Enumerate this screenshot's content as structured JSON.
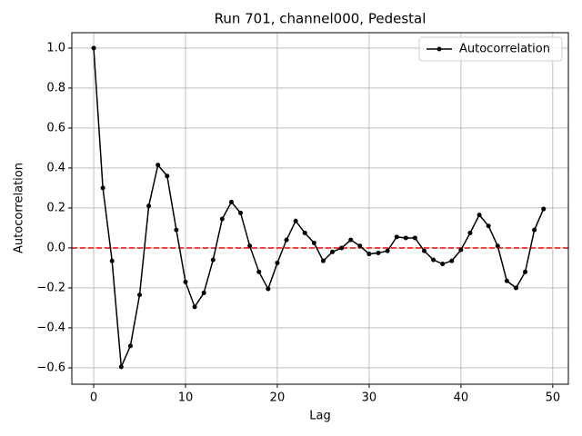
{
  "chart_data": {
    "type": "line",
    "title": "Run 701, channel000, Pedestal",
    "xlabel": "Lag",
    "ylabel": "Autocorrelation",
    "x": [
      0,
      1,
      2,
      3,
      4,
      5,
      6,
      7,
      8,
      9,
      10,
      11,
      12,
      13,
      14,
      15,
      16,
      17,
      18,
      19,
      20,
      21,
      22,
      23,
      24,
      25,
      26,
      27,
      28,
      29,
      30,
      31,
      32,
      33,
      34,
      35,
      36,
      37,
      38,
      39,
      40,
      41,
      42,
      43,
      44,
      45,
      46,
      47,
      48,
      49
    ],
    "series": [
      {
        "name": "Autocorrelation",
        "color": "#000000",
        "values": [
          1.0,
          0.3,
          -0.065,
          -0.595,
          -0.49,
          -0.235,
          0.21,
          0.415,
          0.36,
          0.09,
          -0.17,
          -0.295,
          -0.225,
          -0.06,
          0.145,
          0.23,
          0.175,
          0.01,
          -0.12,
          -0.205,
          -0.075,
          0.04,
          0.135,
          0.075,
          0.025,
          -0.065,
          -0.02,
          0.0,
          0.04,
          0.01,
          -0.03,
          -0.025,
          -0.015,
          0.055,
          0.05,
          0.05,
          -0.015,
          -0.06,
          -0.08,
          -0.065,
          -0.01,
          0.075,
          0.165,
          0.11,
          0.01,
          -0.165,
          -0.2,
          -0.12,
          0.09,
          0.195
        ]
      }
    ],
    "reference_line": {
      "y": 0,
      "color": "#ff0000"
    },
    "xlim": [
      -2.38,
      51.7
    ],
    "ylim": [
      -0.682,
      1.077
    ],
    "xticks": [
      0,
      10,
      20,
      30,
      40,
      50
    ],
    "yticks": [
      {
        "value": -0.6,
        "label": "−0.6"
      },
      {
        "value": -0.4,
        "label": "−0.4"
      },
      {
        "value": -0.2,
        "label": "−0.2"
      },
      {
        "value": 0,
        "label": "0.0"
      },
      0.2,
      0.4,
      0.6,
      0.8,
      {
        "value": 1,
        "label": "1.0"
      }
    ],
    "grid": true,
    "legend": "upper right"
  }
}
